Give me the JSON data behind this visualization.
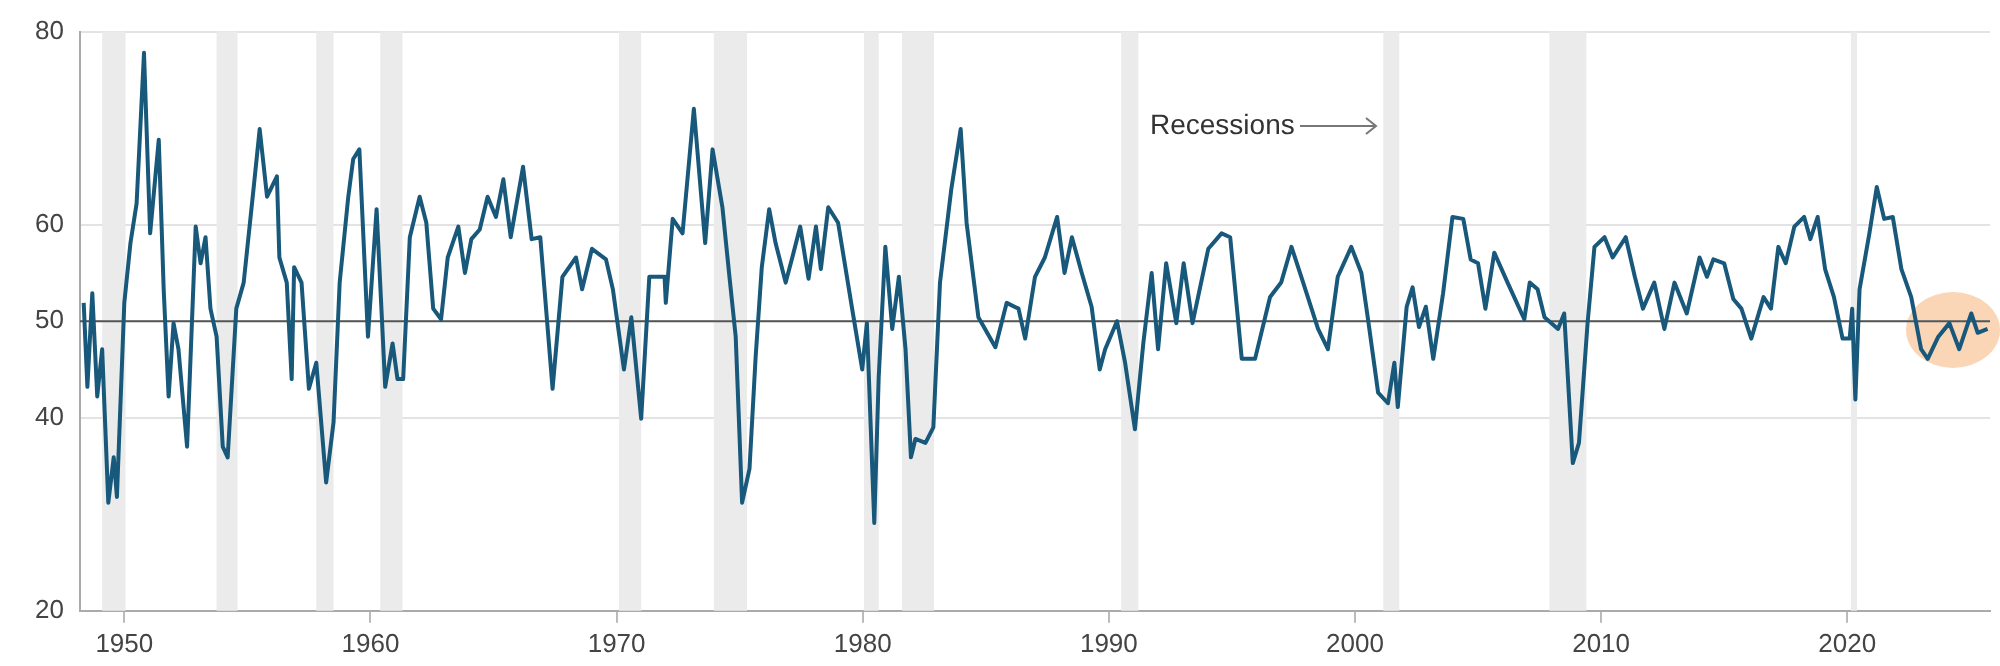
{
  "chart_data": {
    "type": "line",
    "xlim": [
      1948.2,
      2025.8
    ],
    "xticks": [
      1950,
      1960,
      1970,
      1980,
      1990,
      2000,
      2010,
      2020
    ],
    "ylim": [
      20,
      80
    ],
    "yticks": [
      20,
      40,
      50,
      60,
      80
    ],
    "grid": "y",
    "legend": false,
    "marker": "none",
    "line_style": "solid",
    "annotations": [
      "Recessions"
    ],
    "ref_lines": [
      {
        "axis": "y",
        "value": 50,
        "color": "#555555"
      }
    ],
    "bands": [
      {
        "axis": "x",
        "from": 1949.1,
        "to": 1950.05,
        "color": "#ebebeb"
      },
      {
        "axis": "x",
        "from": 1953.75,
        "to": 1954.6,
        "color": "#ebebeb"
      },
      {
        "axis": "x",
        "from": 1957.8,
        "to": 1958.5,
        "color": "#ebebeb"
      },
      {
        "axis": "x",
        "from": 1960.4,
        "to": 1961.3,
        "color": "#ebebeb"
      },
      {
        "axis": "x",
        "from": 1970.1,
        "to": 1971.0,
        "color": "#ebebeb"
      },
      {
        "axis": "x",
        "from": 1973.95,
        "to": 1975.3,
        "color": "#ebebeb"
      },
      {
        "axis": "x",
        "from": 1980.05,
        "to": 1980.65,
        "color": "#ebebeb"
      },
      {
        "axis": "x",
        "from": 1981.6,
        "to": 1982.9,
        "color": "#ebebeb"
      },
      {
        "axis": "x",
        "from": 1990.5,
        "to": 1991.2,
        "color": "#ebebeb"
      },
      {
        "axis": "x",
        "from": 2001.15,
        "to": 2001.8,
        "color": "#ebebeb"
      },
      {
        "axis": "x",
        "from": 2007.9,
        "to": 2009.4,
        "color": "#ebebeb"
      },
      {
        "axis": "x",
        "from": 2020.15,
        "to": 2020.4,
        "color": "#ebebeb"
      }
    ],
    "series": [
      {
        "color": "#18587a",
        "x": [
          1948.35,
          1948.5,
          1948.7,
          1948.9,
          1949.1,
          1949.35,
          1949.57,
          1949.7,
          1950.0,
          1950.25,
          1950.5,
          1950.8,
          1951.05,
          1951.4,
          1951.6,
          1951.8,
          1952.0,
          1952.2,
          1952.55,
          1952.9,
          1953.1,
          1953.3,
          1953.5,
          1953.75,
          1954.0,
          1954.2,
          1954.55,
          1954.85,
          1955.25,
          1955.5,
          1955.8,
          1956.2,
          1956.3,
          1956.6,
          1956.8,
          1956.9,
          1957.2,
          1957.5,
          1957.8,
          1958.2,
          1958.5,
          1958.75,
          1959.1,
          1959.3,
          1959.55,
          1959.9,
          1960.25,
          1960.6,
          1960.9,
          1961.1,
          1961.33,
          1961.6,
          1962.0,
          1962.27,
          1962.55,
          1962.87,
          1963.14,
          1963.57,
          1963.84,
          1964.1,
          1964.44,
          1964.76,
          1965.1,
          1965.4,
          1965.7,
          1966.2,
          1966.55,
          1966.9,
          1967.4,
          1967.8,
          1968.35,
          1968.6,
          1969.0,
          1969.57,
          1969.85,
          1970.3,
          1970.6,
          1971.0,
          1971.33,
          1971.95,
          1972.0,
          1972.28,
          1972.68,
          1973.14,
          1973.6,
          1973.9,
          1974.3,
          1974.57,
          1974.84,
          1975.1,
          1975.4,
          1975.65,
          1975.9,
          1976.2,
          1976.46,
          1976.87,
          1977.14,
          1977.46,
          1977.8,
          1978.1,
          1978.3,
          1978.6,
          1979.0,
          1979.57,
          1979.98,
          1980.17,
          1980.47,
          1980.65,
          1980.92,
          1981.2,
          1981.47,
          1981.74,
          1981.96,
          1982.14,
          1982.55,
          1982.87,
          1983.14,
          1983.6,
          1983.98,
          1984.22,
          1984.7,
          1985.39,
          1985.85,
          1986.33,
          1986.6,
          1987.0,
          1987.4,
          1987.9,
          1988.2,
          1988.5,
          1988.9,
          1989.3,
          1989.63,
          1989.85,
          1990.33,
          1990.66,
          1991.06,
          1991.4,
          1991.74,
          1992.0,
          1992.33,
          1992.74,
          1993.04,
          1993.4,
          1994.04,
          1994.58,
          1994.93,
          1995.4,
          1995.94,
          1996.55,
          1997.0,
          1997.42,
          1997.82,
          1998.5,
          1998.9,
          1999.3,
          1999.85,
          2000.26,
          2000.53,
          2000.94,
          2001.34,
          2001.6,
          2001.74,
          2002.1,
          2002.34,
          2002.6,
          2002.88,
          2003.18,
          2003.58,
          2003.96,
          2004.4,
          2004.7,
          2005.0,
          2005.3,
          2005.66,
          2006.2,
          2006.88,
          2007.1,
          2007.42,
          2007.7,
          2008.25,
          2008.5,
          2008.85,
          2009.1,
          2009.45,
          2009.73,
          2010.14,
          2010.47,
          2011.0,
          2011.37,
          2011.7,
          2012.16,
          2012.57,
          2012.98,
          2013.48,
          2014.0,
          2014.3,
          2014.56,
          2015.0,
          2015.37,
          2015.7,
          2016.1,
          2016.6,
          2016.9,
          2017.2,
          2017.5,
          2017.85,
          2018.25,
          2018.5,
          2018.8,
          2019.1,
          2019.46,
          2019.81,
          2020.1,
          2020.2,
          2020.33,
          2020.5,
          2020.9,
          2021.2,
          2021.5,
          2021.85,
          2022.2,
          2022.6,
          2023.0,
          2023.27,
          2023.7,
          2024.15,
          2024.55,
          2025.04,
          2025.3,
          2025.7
        ],
        "values": [
          51.9,
          43.2,
          52.9,
          42.2,
          47.1,
          31.2,
          35.9,
          31.8,
          51.9,
          58.1,
          62.2,
          77.8,
          59.1,
          68.8,
          53.3,
          42.2,
          49.8,
          47.1,
          37.0,
          59.8,
          56.0,
          58.7,
          51.3,
          48.4,
          37.0,
          35.9,
          51.3,
          54.0,
          63.7,
          69.9,
          62.9,
          65.0,
          56.6,
          54.0,
          44.0,
          55.6,
          54.0,
          43.0,
          45.7,
          33.3,
          39.5,
          54.0,
          62.9,
          66.8,
          67.8,
          48.4,
          61.6,
          43.2,
          47.7,
          44.0,
          44.0,
          58.7,
          62.9,
          60.2,
          51.3,
          50.2,
          56.6,
          59.8,
          55.0,
          58.5,
          59.5,
          62.9,
          60.8,
          64.7,
          58.7,
          66.0,
          58.5,
          58.7,
          43.0,
          54.6,
          56.6,
          53.3,
          57.5,
          56.4,
          53.3,
          45.0,
          50.4,
          39.9,
          54.6,
          54.6,
          51.9,
          60.6,
          59.1,
          72.0,
          58.1,
          67.8,
          61.8,
          55.0,
          48.4,
          31.2,
          34.7,
          46.3,
          55.6,
          61.6,
          58.1,
          54.0,
          56.6,
          59.8,
          54.4,
          59.8,
          55.4,
          61.8,
          60.2,
          51.3,
          45.0,
          49.8,
          29.1,
          44.2,
          57.7,
          49.2,
          54.6,
          47.1,
          35.9,
          37.8,
          37.4,
          39.0,
          54.0,
          63.7,
          69.9,
          60.2,
          50.4,
          47.3,
          51.9,
          51.3,
          48.2,
          54.6,
          56.6,
          60.8,
          55.0,
          58.7,
          55.0,
          51.5,
          45.0,
          47.1,
          50.0,
          45.7,
          38.8,
          47.7,
          55.0,
          47.1,
          56.0,
          49.8,
          56.0,
          49.8,
          57.5,
          59.1,
          58.7,
          46.1,
          46.1,
          52.5,
          54.0,
          57.7,
          54.6,
          49.2,
          47.1,
          54.6,
          57.7,
          55.0,
          50.2,
          42.6,
          41.5,
          45.7,
          41.1,
          51.5,
          53.5,
          49.4,
          51.5,
          46.1,
          52.9,
          60.8,
          60.6,
          56.4,
          56.0,
          51.3,
          57.1,
          54.0,
          50.2,
          54.0,
          53.3,
          50.4,
          49.2,
          50.8,
          35.3,
          37.4,
          49.8,
          57.7,
          58.7,
          56.6,
          58.7,
          54.6,
          51.3,
          54.0,
          49.2,
          54.0,
          50.8,
          56.6,
          54.6,
          56.4,
          56.0,
          52.3,
          51.3,
          48.2,
          52.5,
          51.3,
          57.7,
          56.0,
          59.8,
          60.8,
          58.5,
          60.8,
          55.4,
          52.5,
          48.2,
          48.2,
          51.3,
          41.9,
          53.3,
          59.1,
          63.9,
          60.6,
          60.8,
          55.4,
          52.5,
          47.1,
          46.1,
          48.4,
          49.8,
          47.1,
          50.8,
          48.8,
          49.2
        ]
      }
    ]
  }
}
